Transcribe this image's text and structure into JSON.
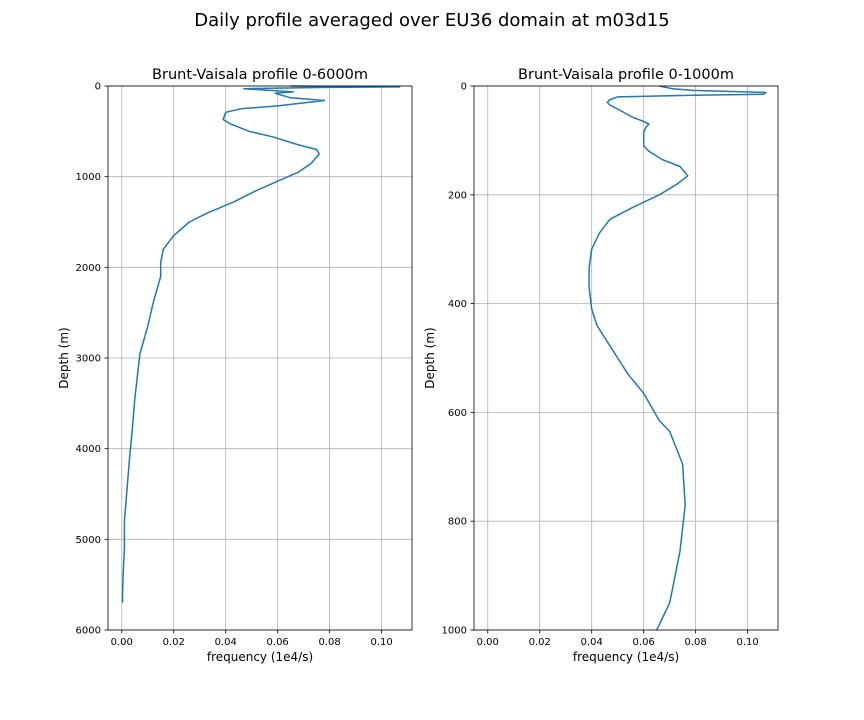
{
  "figure": {
    "suptitle": "Daily profile averaged over EU36 domain at m03d15",
    "line_color": "#1f77b4",
    "grid_color": "#b0b0b0"
  },
  "chart_data": [
    {
      "type": "line",
      "title": "Brunt-Vaisala profile 0-6000m",
      "xlabel": "frequency (1e4/s)",
      "ylabel": "Depth (m)",
      "xlim": [
        -0.0053,
        0.1117
      ],
      "ylim": [
        6000,
        0
      ],
      "y_inverted": true,
      "grid": true,
      "xticks": [
        0.0,
        0.02,
        0.04,
        0.06,
        0.08,
        0.1
      ],
      "xtick_labels": [
        "0.00",
        "0.02",
        "0.04",
        "0.06",
        "0.08",
        "0.10"
      ],
      "yticks": [
        0,
        1000,
        2000,
        3000,
        4000,
        5000,
        6000
      ],
      "ytick_labels": [
        "0",
        "1000",
        "2000",
        "3000",
        "4000",
        "5000",
        "6000"
      ],
      "series": [
        {
          "x": [
            0.065,
            0.107,
            0.079,
            0.047,
            0.066,
            0.059,
            0.065,
            0.078,
            0.06,
            0.046,
            0.04,
            0.039,
            0.042,
            0.049,
            0.058,
            0.068,
            0.075,
            0.076,
            0.073,
            0.068,
            0.06,
            0.052,
            0.043,
            0.033,
            0.026,
            0.02,
            0.016,
            0.015,
            0.015,
            0.012,
            0.01,
            0.007,
            0.006,
            0.005,
            0.004,
            0.003,
            0.002,
            0.001,
            0.001,
            0.0005,
            0.0003,
            0.0003
          ],
          "y": [
            0,
            10,
            15,
            30,
            65,
            80,
            130,
            160,
            220,
            250,
            290,
            370,
            420,
            500,
            560,
            650,
            700,
            750,
            850,
            950,
            1050,
            1150,
            1280,
            1400,
            1500,
            1650,
            1800,
            1950,
            2100,
            2400,
            2650,
            2950,
            3200,
            3450,
            3800,
            4100,
            4450,
            4800,
            5100,
            5400,
            5600,
            5700
          ]
        }
      ]
    },
    {
      "type": "line",
      "title": "Brunt-Vaisala profile 0-1000m",
      "xlabel": "frequency (1e4/s)",
      "ylabel": "Depth (m)",
      "xlim": [
        -0.0053,
        0.1117
      ],
      "ylim": [
        1000,
        0
      ],
      "y_inverted": true,
      "grid": true,
      "xticks": [
        0.0,
        0.02,
        0.04,
        0.06,
        0.08,
        0.1
      ],
      "xtick_labels": [
        "0.00",
        "0.02",
        "0.04",
        "0.06",
        "0.08",
        "0.10"
      ],
      "yticks": [
        0,
        200,
        400,
        600,
        800,
        1000
      ],
      "ytick_labels": [
        "0",
        "200",
        "400",
        "600",
        "800",
        "1000"
      ],
      "series": [
        {
          "x": [
            0.066,
            0.071,
            0.079,
            0.107,
            0.106,
            0.079,
            0.05,
            0.047,
            0.046,
            0.047,
            0.051,
            0.056,
            0.06,
            0.062,
            0.061,
            0.06,
            0.06,
            0.062,
            0.067,
            0.074,
            0.077,
            0.073,
            0.066,
            0.055,
            0.047,
            0.043,
            0.04,
            0.039,
            0.039,
            0.04,
            0.042,
            0.046,
            0.05,
            0.054,
            0.06,
            0.066,
            0.07,
            0.075,
            0.076,
            0.074,
            0.07,
            0.065
          ],
          "y": [
            0,
            5,
            8,
            12,
            15,
            17,
            20,
            25,
            30,
            35,
            45,
            58,
            65,
            70,
            75,
            85,
            110,
            120,
            135,
            148,
            165,
            180,
            200,
            225,
            245,
            270,
            300,
            335,
            370,
            410,
            440,
            470,
            500,
            530,
            565,
            615,
            635,
            695,
            770,
            855,
            950,
            1000
          ]
        }
      ]
    }
  ]
}
